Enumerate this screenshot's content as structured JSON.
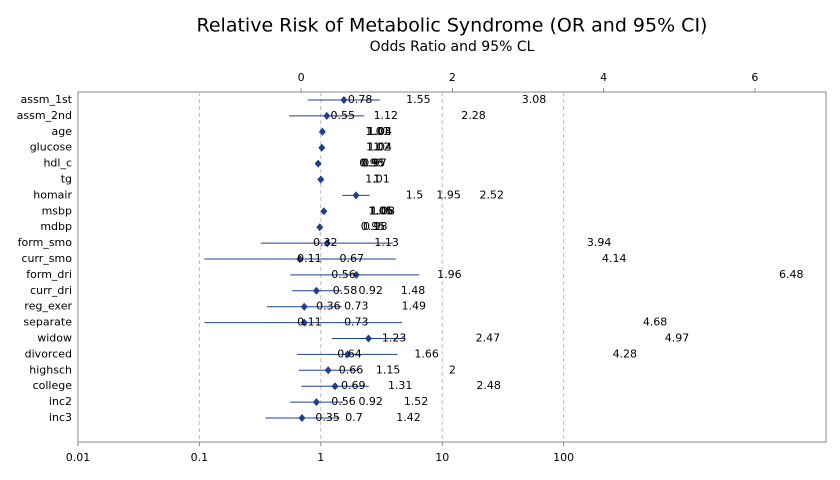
{
  "chart_data": {
    "type": "forest",
    "title": "Relative Risk of Metabolic Syndrome (OR and 95% CI)",
    "subtitle": "Odds Ratio and 95% CL",
    "categories": [
      "assm_1st",
      "assm_2nd",
      "age",
      "glucose",
      "hdl_c",
      "tg",
      "homair",
      "msbp",
      "mdbp",
      "form_smo",
      "curr_smo",
      "form_dri",
      "curr_dri",
      "reg_exer",
      "separate",
      "widow",
      "divorced",
      "highsch",
      "college",
      "inc2",
      "inc3"
    ],
    "values": [
      1.55,
      1.12,
      1.03,
      1.02,
      0.95,
      1,
      1.95,
      1.06,
      0.98,
      1.13,
      0.67,
      1.96,
      0.92,
      0.73,
      0.73,
      2.47,
      1.66,
      1.15,
      1.31,
      0.92,
      0.7
    ],
    "lower": [
      0.78,
      0.55,
      1.01,
      1,
      0.93,
      1,
      1.5,
      1.05,
      0.95,
      0.32,
      0.11,
      0.56,
      0.58,
      0.36,
      0.11,
      1.23,
      0.64,
      0.66,
      0.69,
      0.56,
      0.35
    ],
    "upper": [
      3.08,
      2.28,
      1.04,
      1.04,
      0.97,
      1.01,
      2.52,
      1.08,
      1,
      3.94,
      4.14,
      6.48,
      1.48,
      1.49,
      4.68,
      4.97,
      4.28,
      2,
      2.48,
      1.52,
      1.42
    ],
    "color": "#1f3f8f",
    "log_x": true,
    "xlim": [
      0.01,
      14500
    ],
    "xticks": [
      0.01,
      0.1,
      1,
      10,
      100
    ],
    "x2lim": [
      -2.95,
      6.94
    ],
    "x2ticks": [
      0,
      2,
      4,
      6
    ],
    "grid": true
  }
}
